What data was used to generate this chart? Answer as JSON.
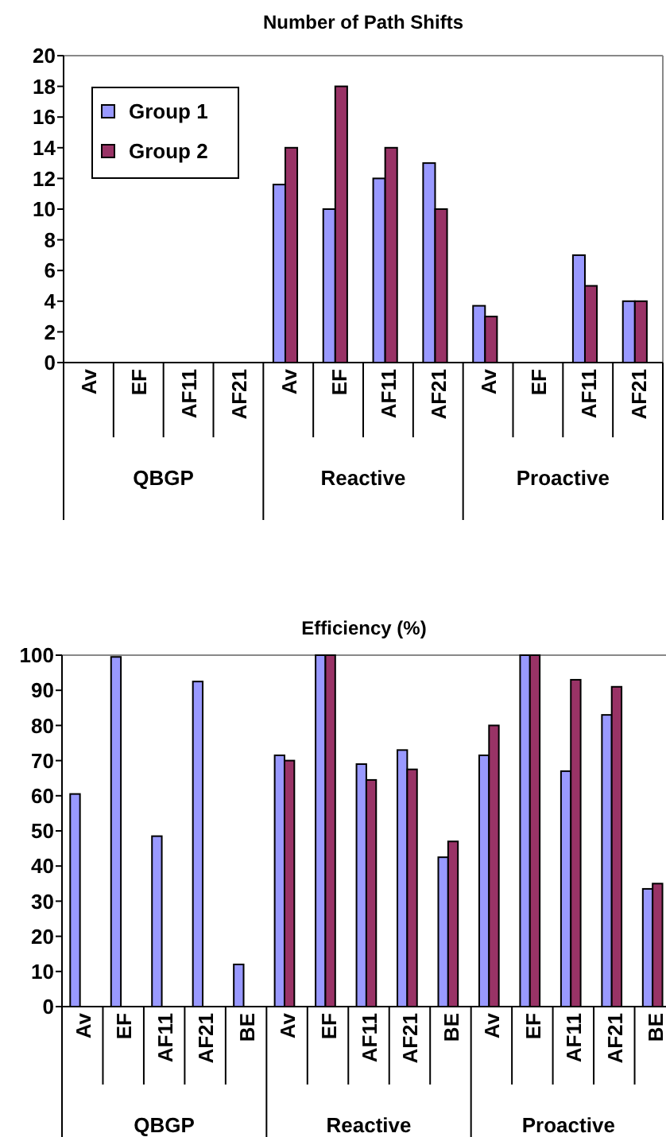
{
  "chart_data": [
    {
      "type": "bar",
      "title": "Number of Path Shifts",
      "categories": [
        "Av",
        "EF",
        "AF11",
        "AF21",
        "Av",
        "EF",
        "AF11",
        "AF21",
        "Av",
        "EF",
        "AF11",
        "AF21"
      ],
      "series": [
        {
          "name": "Group 1",
          "color": "#9999ff",
          "values": [
            null,
            null,
            null,
            null,
            11.6,
            10,
            12,
            13,
            3.7,
            null,
            7,
            4
          ]
        },
        {
          "name": "Group 2",
          "color": "#993366",
          "values": [
            null,
            null,
            null,
            null,
            14,
            18,
            14,
            10,
            3,
            null,
            5,
            4
          ]
        }
      ],
      "ylim": [
        0,
        20
      ],
      "yticks": [
        0,
        2,
        4,
        6,
        8,
        10,
        12,
        14,
        16,
        18,
        20
      ],
      "grid": false,
      "legend": "top left",
      "annotations": [
        "QBGP",
        "Reactive",
        "Proactive"
      ]
    },
    {
      "type": "bar",
      "title": "Efficiency (%)",
      "categories": [
        "Av",
        "EF",
        "AF11",
        "AF21",
        "BE",
        "Av",
        "EF",
        "AF11",
        "AF21",
        "BE",
        "Av",
        "EF",
        "AF11",
        "AF21",
        "BE"
      ],
      "series": [
        {
          "color": "#9999ff",
          "values": [
            60.5,
            99.5,
            48.5,
            92.5,
            12,
            71.5,
            100,
            69,
            73,
            42.5,
            71.5,
            100,
            67,
            83,
            33.5
          ]
        },
        {
          "color": "#993366",
          "values": [
            null,
            null,
            null,
            null,
            null,
            70,
            100,
            64.5,
            67.5,
            47,
            80,
            100,
            93,
            91,
            35
          ]
        }
      ],
      "ylim": [
        0,
        100
      ],
      "yticks": [
        0,
        10,
        20,
        30,
        40,
        50,
        60,
        70,
        80,
        90,
        100
      ],
      "grid": false,
      "legend": false,
      "annotations": [
        "QBGP",
        "Reactive",
        "Proactive"
      ]
    }
  ]
}
